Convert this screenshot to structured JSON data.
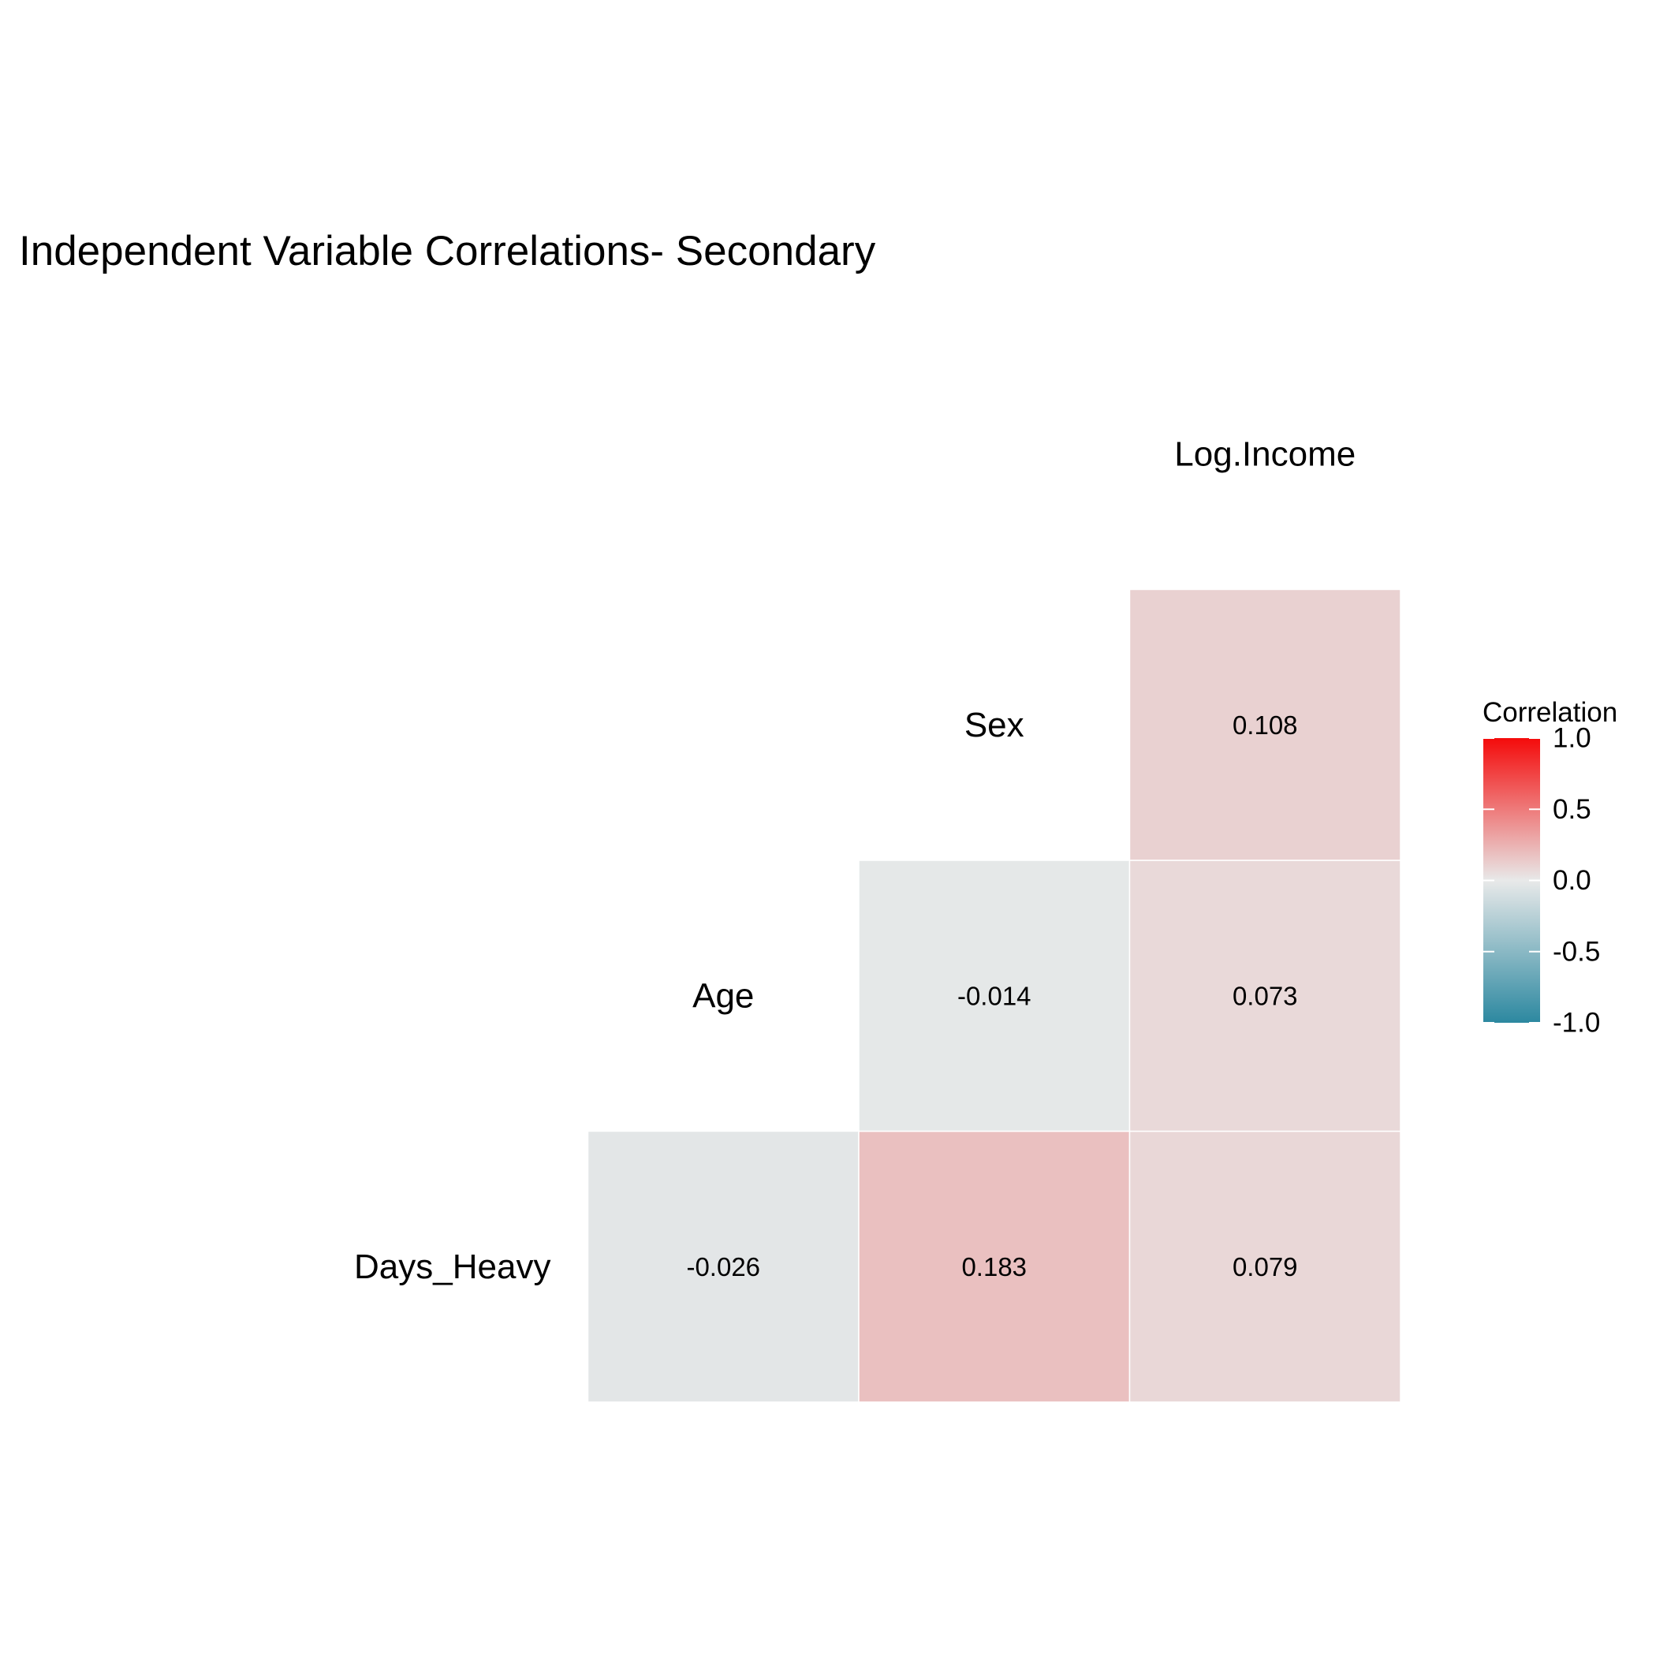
{
  "chart_data": {
    "type": "heatmap",
    "title": "Independent Variable Correlations- Secondary",
    "variables": [
      "Days_Heavy",
      "Age",
      "Sex",
      "Log.Income"
    ],
    "cells": [
      {
        "row": "Days_Heavy",
        "col": "Age",
        "value": -0.026,
        "label": "-0.026"
      },
      {
        "row": "Days_Heavy",
        "col": "Sex",
        "value": 0.183,
        "label": "0.183"
      },
      {
        "row": "Days_Heavy",
        "col": "Log.Income",
        "value": 0.079,
        "label": "0.079"
      },
      {
        "row": "Age",
        "col": "Sex",
        "value": -0.014,
        "label": "-0.014"
      },
      {
        "row": "Age",
        "col": "Log.Income",
        "value": 0.073,
        "label": "0.073"
      },
      {
        "row": "Sex",
        "col": "Log.Income",
        "value": 0.108,
        "label": "0.108"
      }
    ],
    "legend": {
      "title": "Correlation",
      "range": [
        -1.0,
        1.0
      ],
      "ticks": [
        1.0,
        0.5,
        0.0,
        -0.5,
        -1.0
      ],
      "tick_labels": [
        "1.0",
        "0.5",
        "0.0",
        "-0.5",
        "-1.0"
      ],
      "position": "right"
    },
    "colors": {
      "low": "#2c88a0",
      "mid": "#e8e9e9",
      "high": "#f40b0b"
    }
  }
}
